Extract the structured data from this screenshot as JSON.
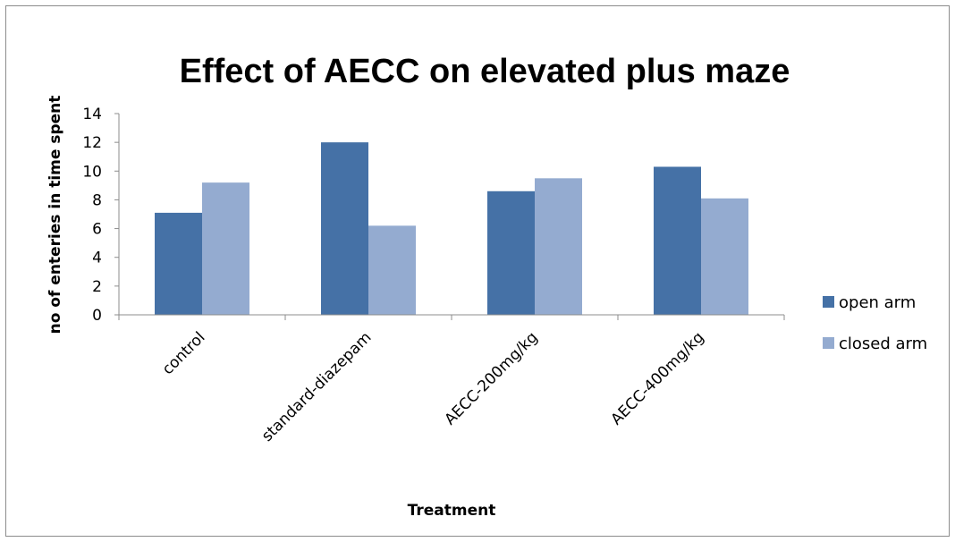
{
  "chart_data": {
    "type": "bar",
    "title": "Effect of AECC on elevated plus maze",
    "xlabel": "Treatment",
    "ylabel": "no of enteries in time spent",
    "ylim": [
      0,
      14
    ],
    "yticks": [
      0,
      2,
      4,
      6,
      8,
      10,
      12,
      14
    ],
    "categories": [
      "control",
      "standard-diazepam",
      "AECC-200mg/kg",
      "AECC-400mg/kg"
    ],
    "series": [
      {
        "name": "open arm",
        "values": [
          7.1,
          12.0,
          8.6,
          10.3
        ],
        "color": "#4571a6"
      },
      {
        "name": "closed arm",
        "values": [
          9.2,
          6.2,
          9.5,
          8.1
        ],
        "color": "#94abd0"
      }
    ],
    "grid": false,
    "legend_position": "right"
  }
}
